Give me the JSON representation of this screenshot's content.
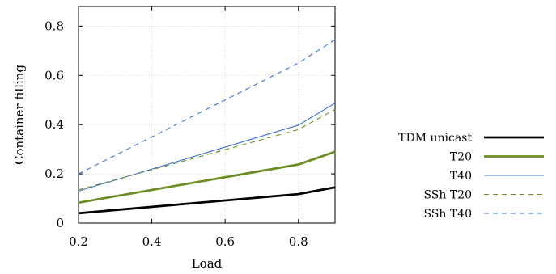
{
  "chart_data": {
    "type": "line",
    "xlabel": "Load",
    "ylabel": "Container filling",
    "xlim": [
      0.2,
      0.9
    ],
    "ylim": [
      0,
      0.88
    ],
    "xticks": [
      "0.2",
      "0.4",
      "0.6",
      "0.8"
    ],
    "xtick_values": [
      0.2,
      0.4,
      0.6,
      0.8
    ],
    "yticks": [
      "0",
      "0.2",
      "0.4",
      "0.6",
      "0.8"
    ],
    "ytick_values": [
      0,
      0.2,
      0.4,
      0.6,
      0.8
    ],
    "grid": true,
    "legend_position": "outside-right",
    "series": [
      {
        "name": "TDM unicast",
        "color": "#000000",
        "style": "solid",
        "weight": "thick",
        "x": [
          0.2,
          0.8,
          0.9
        ],
        "y": [
          0.04,
          0.118,
          0.145
        ]
      },
      {
        "name": "T20",
        "color": "#6b8e23",
        "style": "solid",
        "weight": "thick",
        "x": [
          0.2,
          0.8,
          0.9
        ],
        "y": [
          0.083,
          0.238,
          0.29
        ]
      },
      {
        "name": "T40",
        "color": "#3a75d0",
        "style": "solid",
        "weight": "thin",
        "x": [
          0.2,
          0.8,
          0.9
        ],
        "y": [
          0.13,
          0.398,
          0.487
        ]
      },
      {
        "name": "SSh T20",
        "color": "#6b8e23",
        "style": "dashed",
        "weight": "thin",
        "x": [
          0.2,
          0.8,
          0.9
        ],
        "y": [
          0.135,
          0.38,
          0.462
        ]
      },
      {
        "name": "SSh T40",
        "color": "#3a75d0",
        "style": "dashed",
        "weight": "thin",
        "x": [
          0.2,
          0.8,
          0.9
        ],
        "y": [
          0.2,
          0.65,
          0.745
        ]
      }
    ]
  }
}
